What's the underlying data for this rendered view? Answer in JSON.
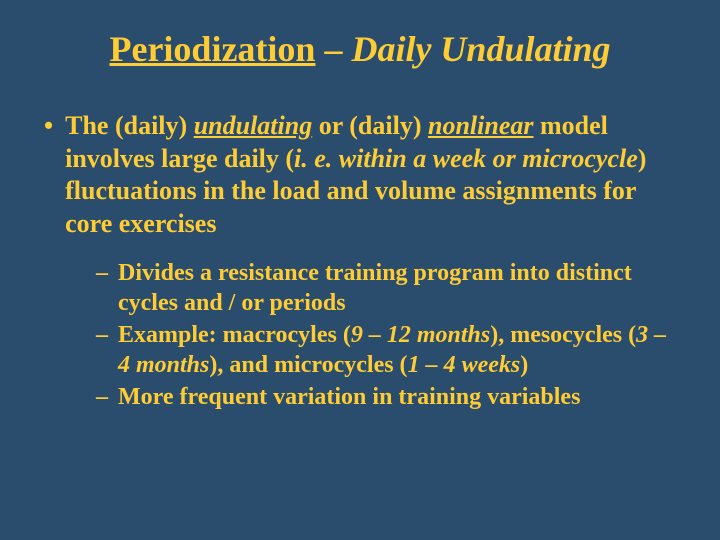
{
  "background_color": "#2a4d6e",
  "text_color": "#ffcc33",
  "font_family": "Times New Roman",
  "title": {
    "part1_text": "Periodization",
    "separator": " – ",
    "part2_text": "Daily Undulating",
    "fontsize": 36,
    "fontweight": "bold"
  },
  "main_bullet": {
    "marker": "•",
    "segments": {
      "s1": "The (daily) ",
      "s2": "undulating",
      "s3": " or (daily) ",
      "s4": "nonlinear",
      "s5": " model involves large daily (",
      "s6": "i. e. within a week or microcycle",
      "s7": ") fluctuations in the load and volume assignments for core exercises"
    },
    "fontsize": 26,
    "fontweight": "bold"
  },
  "sub_bullets": {
    "marker": "–",
    "fontsize": 24,
    "fontweight": "bold",
    "items": [
      {
        "text": "Divides a resistance training program into distinct cycles and / or periods"
      },
      {
        "s1": "Example: macrocyles (",
        "s2": "9 – 12 months",
        "s3": "), mesocycles (",
        "s4": "3 – 4 months",
        "s5": "), and microcycles (",
        "s6": "1 – 4 weeks",
        "s7": ")"
      },
      {
        "text": "More frequent variation in training variables"
      }
    ]
  }
}
